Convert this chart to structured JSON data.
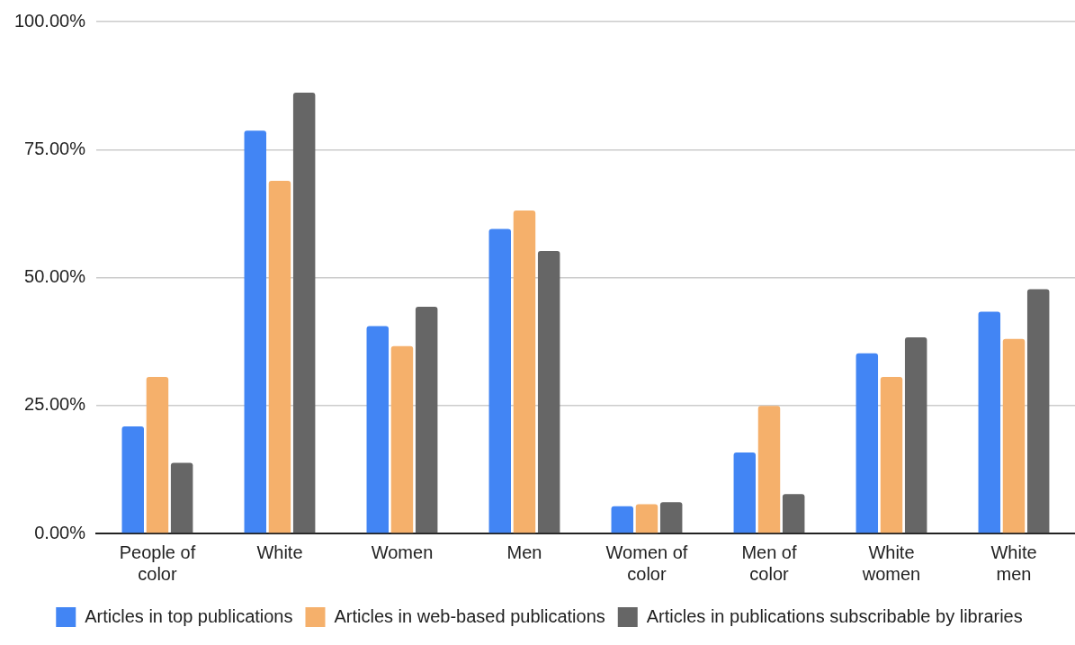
{
  "chart_data": {
    "type": "bar",
    "categories": [
      "People of color",
      "White",
      "Women",
      "Men",
      "Women of color",
      "Men of color",
      "White women",
      "White men"
    ],
    "series": [
      {
        "name": "Articles in top publications",
        "color": "#4285f4",
        "values": [
          20.9,
          78.7,
          40.5,
          59.5,
          5.3,
          15.8,
          35.2,
          43.3
        ]
      },
      {
        "name": "Articles in web-based publications",
        "color": "#f5b06b",
        "values": [
          30.6,
          68.9,
          36.6,
          63.1,
          5.7,
          24.9,
          30.6,
          38.0
        ]
      },
      {
        "name": "Articles in publications subscribable by libraries",
        "color": "#666666",
        "values": [
          13.8,
          86.1,
          44.3,
          55.2,
          6.1,
          7.7,
          38.3,
          47.7
        ]
      }
    ],
    "ylim": [
      0,
      100
    ],
    "yticks": [
      {
        "value": 0,
        "label": "0.00%"
      },
      {
        "value": 25,
        "label": "25.00%"
      },
      {
        "value": 50,
        "label": "50.00%"
      },
      {
        "value": 75,
        "label": "75.00%"
      },
      {
        "value": 100,
        "label": "100.00%"
      }
    ],
    "grid": "y",
    "legend": "bottom"
  }
}
